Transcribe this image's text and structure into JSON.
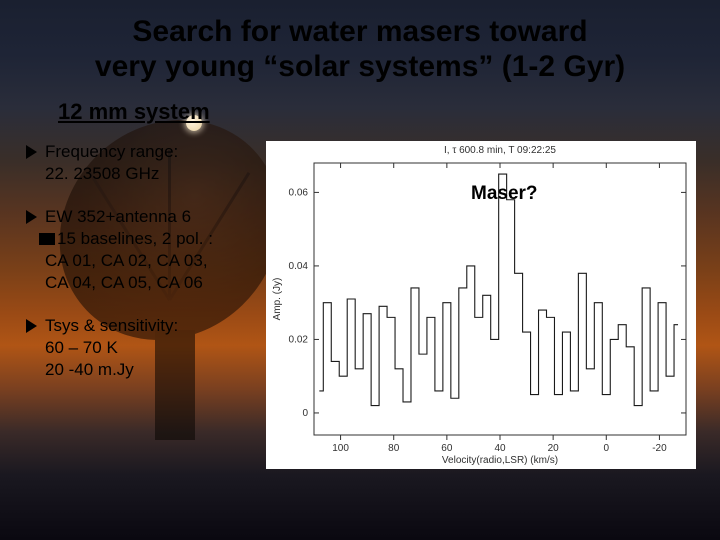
{
  "title_line1": "Search for water masers toward",
  "title_line2": "very young “solar systems” (1-2 Gyr)",
  "subtitle": "12 mm system",
  "bullets": [
    {
      "lines": [
        "Frequency range:",
        "22. 23508 GHz"
      ]
    },
    {
      "lines": [
        "EW 352+antenna 6",
        "➡ 15 baselines, 2 pol. :",
        "CA 01, CA 02, CA 03,",
        "CA 04, CA 05, CA 06"
      ]
    },
    {
      "lines": [
        "Tsys & sensitivity:",
        "60 – 70 K",
        "20 -40 m.Jy"
      ]
    }
  ],
  "chart": {
    "type": "line",
    "top_label": "I, τ 600.8 min, T 09:22:25",
    "maser_label": "Maser?",
    "plot_bg": "#ffffff",
    "line_color": "#1a1a1a",
    "axis_color": "#303030",
    "font_family": "Arial",
    "ylabel": "Amp. (Jy)",
    "xlabel": "Velocity(radio,LSR) (km/s)",
    "x_ticks": [
      100,
      80,
      60,
      40,
      20,
      0,
      -20
    ],
    "x_reversed": true,
    "xlim": [
      110,
      -30
    ],
    "y_ticks": [
      0,
      0.02,
      0.04,
      0.06
    ],
    "y_tick_labels": [
      "0",
      "0.02",
      "0.04",
      "0.06"
    ],
    "ylim": [
      -0.006,
      0.068
    ],
    "line_width": 1.1,
    "values_x": [
      108,
      105,
      102,
      99,
      96,
      93,
      90,
      87,
      84,
      81,
      78,
      75,
      72,
      69,
      66,
      63,
      60,
      57,
      54,
      51,
      48,
      45,
      42,
      39,
      36,
      33,
      30,
      27,
      24,
      21,
      18,
      15,
      12,
      9,
      6,
      3,
      0,
      -3,
      -6,
      -9,
      -12,
      -15,
      -18,
      -21,
      -24,
      -27
    ],
    "values_y": [
      0.006,
      0.03,
      0.014,
      0.01,
      0.031,
      0.012,
      0.027,
      0.002,
      0.029,
      0.026,
      0.012,
      0.003,
      0.034,
      0.016,
      0.026,
      0.006,
      0.03,
      0.004,
      0.034,
      0.04,
      0.026,
      0.032,
      0.02,
      0.065,
      0.058,
      0.038,
      0.022,
      0.005,
      0.028,
      0.026,
      0.005,
      0.022,
      0.006,
      0.038,
      0.012,
      0.03,
      0.005,
      0.02,
      0.024,
      0.018,
      0.002,
      0.034,
      0.006,
      0.03,
      0.01,
      0.024
    ]
  }
}
